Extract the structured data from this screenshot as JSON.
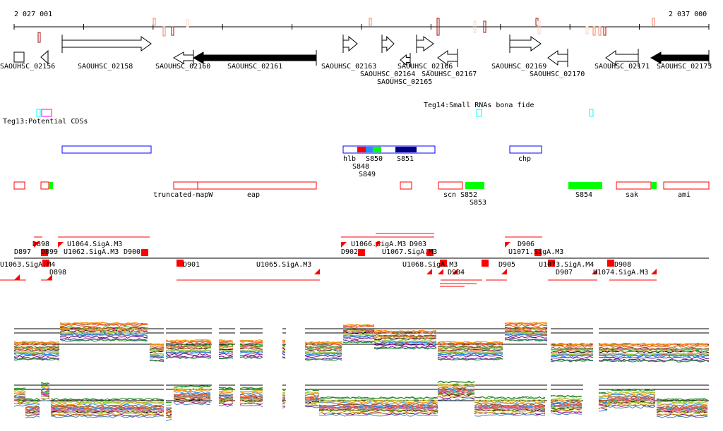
{
  "ruler": {
    "start_label": "2 027 001",
    "end_label": "2 037 000"
  },
  "genes": [
    {
      "name": "SAOUHSC_02156",
      "strand": "box"
    },
    {
      "name": "",
      "strand": "-"
    },
    {
      "name": "SAOUHSC_02158",
      "strand": "+"
    },
    {
      "name": "SAOUHSC_02160",
      "strand": "-"
    },
    {
      "name": "SAOUHSC_02161",
      "strand": "-",
      "filled": true
    },
    {
      "name": "SAOUHSC_02163",
      "strand": "+"
    },
    {
      "name": "SAOUHSC_02164",
      "strand": "+"
    },
    {
      "name": "SAOUHSC_02165",
      "strand": "-"
    },
    {
      "name": "SAOUHSC_02166",
      "strand": "+"
    },
    {
      "name": "SAOUHSC_02167",
      "strand": "-"
    },
    {
      "name": "SAOUHSC_02169",
      "strand": "+"
    },
    {
      "name": "SAOUHSC_02170",
      "strand": "-"
    },
    {
      "name": "SAOUHSC_02171",
      "strand": "-"
    },
    {
      "name": "SAOUHSC_02173",
      "strand": "-",
      "filled": true
    }
  ],
  "tracks": {
    "teg13_label": "Teg13:Potential CDSs",
    "teg14_label": "Teg14:Small RNAs bona fide"
  },
  "blue_features": [
    "hlb",
    "S848",
    "S849",
    "S850",
    "S851",
    "chp"
  ],
  "red_features": [
    "truncated-mapW",
    "eap",
    "scn",
    "S852",
    "S853",
    "S854",
    "sak",
    "ami"
  ],
  "regulatory_labels": {
    "above": [
      "D897",
      "D898",
      "D899",
      "U1062.SigA.M3",
      "U1064.SigA.M3",
      "D900",
      "D902",
      "U1066.SigA.M3",
      "U1067.SigA.M3",
      "D903",
      "U1071.SigA.M3",
      "D906"
    ],
    "below": [
      "U1063.SigA.M4",
      "D898",
      "D901",
      "U1065.SigA.M3",
      "D904",
      "U1068.SigA.M3",
      "D905",
      "D907",
      "U1073.SigA.M4",
      "U1074.SigA.M3",
      "D908"
    ]
  },
  "colors": {
    "promoter": "#ff0000",
    "utr": "#0000ff",
    "cds_marker": "#00ff00",
    "teg13": "#00ffff",
    "teg14": "#ff00ff"
  }
}
